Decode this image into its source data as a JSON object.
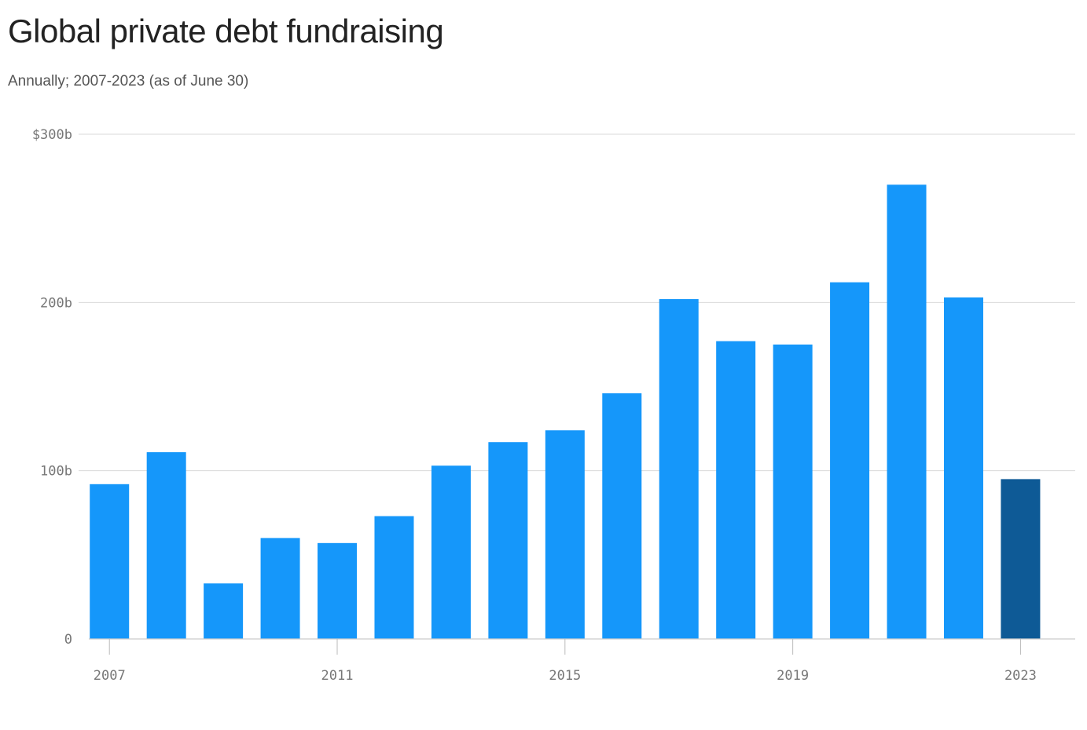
{
  "header": {
    "title": "Global private debt fundraising",
    "subtitle": "Annually; 2007-2023 (as of June 30)"
  },
  "colors": {
    "bar": "#1597fa",
    "bar_highlight": "#0e5a96"
  },
  "chart_data": {
    "type": "bar",
    "title": "Global private debt fundraising",
    "subtitle": "Annually; 2007-2023 (as of June 30)",
    "xlabel": "",
    "ylabel": "",
    "categories": [
      "2007",
      "2008",
      "2009",
      "2010",
      "2011",
      "2012",
      "2013",
      "2014",
      "2015",
      "2016",
      "2017",
      "2018",
      "2019",
      "2020",
      "2021",
      "2022",
      "2023"
    ],
    "values": [
      92,
      111,
      33,
      60,
      57,
      73,
      103,
      117,
      124,
      146,
      202,
      177,
      175,
      212,
      270,
      203,
      95
    ],
    "highlight_category": "2023",
    "unit": "billion USD",
    "ylim": [
      0,
      300
    ],
    "y_ticks": [
      {
        "value": 0,
        "label": "0"
      },
      {
        "value": 100,
        "label": "100b"
      },
      {
        "value": 200,
        "label": "200b"
      },
      {
        "value": 300,
        "label": "$300b"
      }
    ],
    "x_tick_labels": [
      "2007",
      "2011",
      "2015",
      "2019",
      "2023"
    ],
    "grid": true,
    "legend": "none"
  }
}
